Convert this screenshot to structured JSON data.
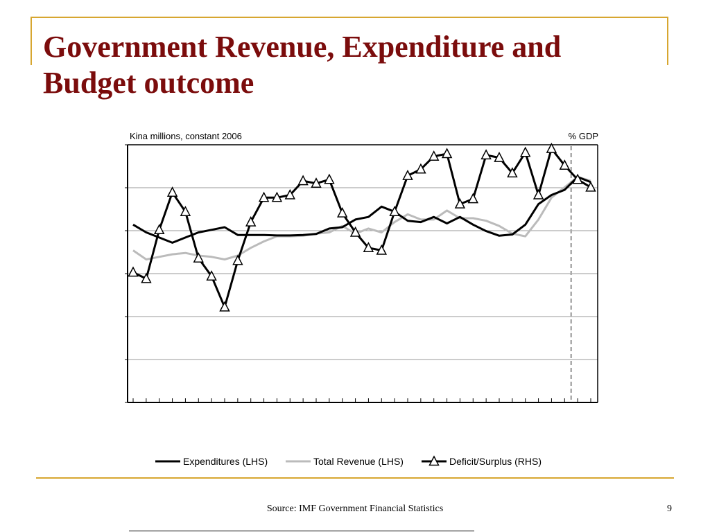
{
  "slide": {
    "title": "Government Revenue, Expenditure and Budget outcome",
    "source": "Source: IMF Government Financial Statistics",
    "page_number": "9",
    "accent_color": "#d7a630",
    "title_color": "#7b0c0c"
  },
  "chart_data": {
    "type": "line",
    "left_axis_label": "Kina millions, constant 2006",
    "right_axis_label": "% GDP",
    "x_count": 36,
    "projection_start_index": 34,
    "grid": true,
    "legend_position": "bottom",
    "series": [
      {
        "name": "Expenditures (LHS)",
        "axis": "left",
        "color": "#000000",
        "marker": "none",
        "values": [
          31,
          34,
          36,
          38,
          36,
          34,
          33,
          32,
          35,
          35,
          35,
          35.2,
          35.2,
          35,
          34.6,
          32.5,
          32,
          29,
          28,
          24,
          26,
          29.5,
          30,
          28,
          30.5,
          28,
          31,
          33.5,
          35.3,
          34.8,
          31,
          23,
          19.5,
          17.5,
          12.5,
          14.5
        ]
      },
      {
        "name": "Total Revenue (LHS)",
        "axis": "left",
        "color": "#bbbbbb",
        "marker": "none",
        "values": [
          41,
          44.5,
          43.5,
          42.5,
          42,
          43,
          43.5,
          44.5,
          43,
          40,
          37.5,
          35.5,
          35.5,
          35.3,
          34.5,
          34,
          31.5,
          34.5,
          32.5,
          34,
          30,
          27,
          29,
          29,
          25.5,
          28.5,
          28.5,
          29.5,
          31.5,
          34.5,
          35.5,
          29,
          20.5,
          16.5,
          12.5,
          14
        ]
      },
      {
        "name": "Deficit/Surplus (RHS)",
        "axis": "right",
        "color": "#000000",
        "marker": "triangle",
        "values": [
          49.5,
          52,
          33,
          18.5,
          26,
          44,
          51,
          63,
          45,
          30,
          20.5,
          20.5,
          19.5,
          14,
          15,
          13.5,
          26.5,
          34,
          40,
          41,
          26,
          12,
          9.5,
          4.5,
          3.5,
          23,
          21,
          4,
          5,
          11,
          3,
          19.5,
          1.5,
          8,
          13.5,
          16.5
        ]
      }
    ]
  }
}
